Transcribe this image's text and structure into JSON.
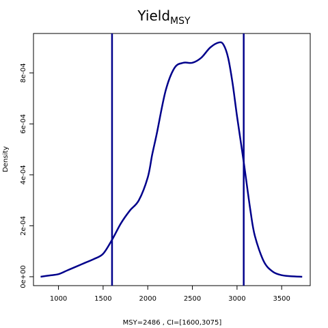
{
  "chart_data": {
    "type": "line",
    "title": "Yield",
    "title_subscript": "MSY",
    "xlabel": "MSY=2486 , CI=[1600,3075]",
    "ylabel": "Density",
    "xlim": [
      720,
      3820
    ],
    "ylim": [
      -3.5e-05,
      0.000955
    ],
    "x_ticks": [
      1000,
      1500,
      2000,
      2500,
      3000,
      3500
    ],
    "x_tick_labels": [
      "1000",
      "1500",
      "2000",
      "2500",
      "3000",
      "3500"
    ],
    "y_ticks": [
      0,
      0.0002,
      0.0004,
      0.0006,
      0.0008
    ],
    "y_tick_labels": [
      "0e+00",
      "2e-04",
      "4e-04",
      "6e-04",
      "8e-04"
    ],
    "grid": false,
    "line_color": "#00008b",
    "vlines": [
      1600,
      3075
    ],
    "series": [
      {
        "x": [
          800,
          900,
          1000,
          1100,
          1200,
          1300,
          1400,
          1500,
          1600,
          1700,
          1800,
          1900,
          2000,
          2050,
          2100,
          2200,
          2300,
          2400,
          2500,
          2600,
          2700,
          2800,
          2850,
          2900,
          2950,
          3000,
          3075,
          3150,
          3200,
          3300,
          3400,
          3500,
          3600,
          3730
        ],
        "y": [
          0.0,
          5e-06,
          1e-05,
          2.5e-05,
          4e-05,
          5.5e-05,
          7e-05,
          9e-05,
          0.000145,
          0.00021,
          0.00026,
          0.0003,
          0.00039,
          0.00048,
          0.00056,
          0.00073,
          0.00082,
          0.00084,
          0.00084,
          0.00086,
          0.0009,
          0.00092,
          0.00091,
          0.00086,
          0.00076,
          0.00063,
          0.00045,
          0.00026,
          0.00016,
          6e-05,
          2e-05,
          6e-06,
          2e-06,
          0.0
        ]
      }
    ]
  }
}
